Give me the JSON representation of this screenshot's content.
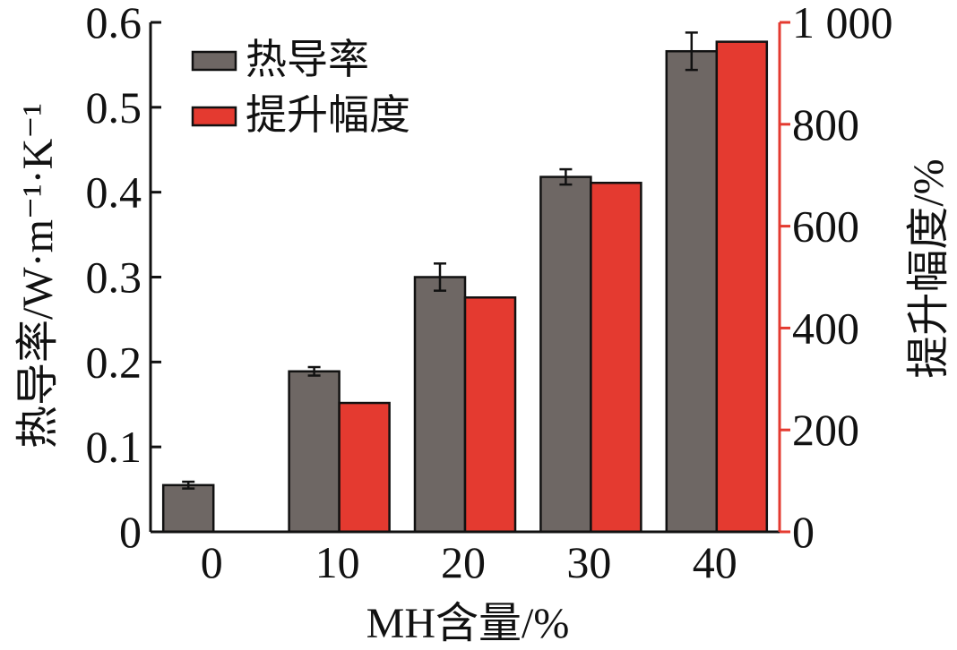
{
  "chart_data": {
    "type": "bar",
    "categories": [
      "0",
      "10",
      "20",
      "30",
      "40"
    ],
    "xlabel": "MH含量/%",
    "ylabel_left": "热导率/W·m⁻¹·K⁻¹",
    "ylabel_right": "提升幅度/%",
    "ylim_left": [
      0,
      0.6
    ],
    "ylim_right": [
      0,
      1000
    ],
    "yticks_left": [
      "0",
      "0.1",
      "0.2",
      "0.3",
      "0.4",
      "0.5",
      "0.6"
    ],
    "yticks_right": [
      "0",
      "200",
      "400",
      "600",
      "800",
      "1 000"
    ],
    "legend_position": "top-left",
    "grid": false,
    "series": [
      {
        "name": "热导率",
        "axis": "left",
        "color": "#6e6764",
        "values": [
          0.055,
          0.189,
          0.3,
          0.418,
          0.566
        ],
        "error": [
          0.004,
          0.005,
          0.016,
          0.009,
          0.022
        ]
      },
      {
        "name": "提升幅度",
        "axis": "right",
        "color": "#e43a30",
        "values": [
          0,
          253,
          460,
          685,
          962
        ]
      }
    ],
    "colors": {
      "right_axis": "#e43a30",
      "axis": "#111111"
    }
  }
}
